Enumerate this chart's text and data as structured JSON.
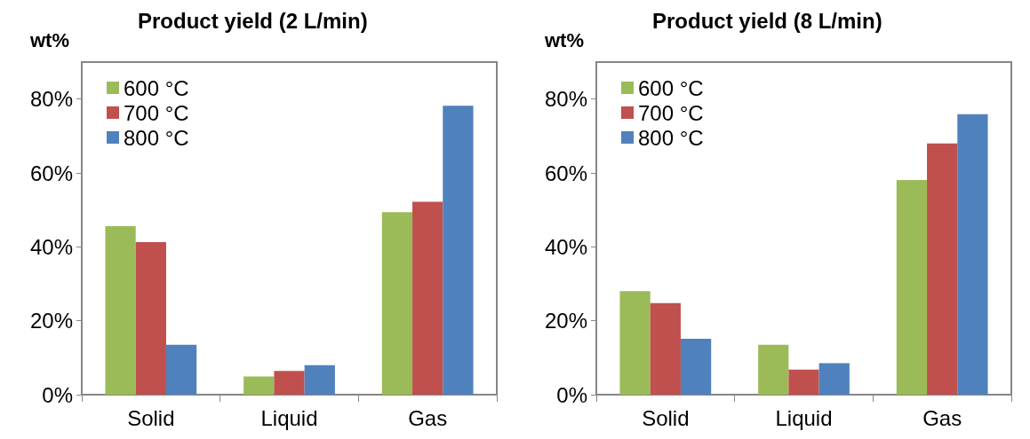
{
  "chart_data": [
    {
      "type": "bar",
      "title": "Product yield (2 L/min)",
      "ylabel": "wt%",
      "categories": [
        "Solid",
        "Liquid",
        "Gas"
      ],
      "series": [
        {
          "name": "600 °C",
          "color": "#9bbb59",
          "values": [
            45.6,
            4.9,
            49.4
          ]
        },
        {
          "name": "700 °C",
          "color": "#c0504d",
          "values": [
            41.3,
            6.4,
            52.2
          ]
        },
        {
          "name": "800 °C",
          "color": "#4f81bd",
          "values": [
            13.5,
            8.0,
            78.2
          ]
        }
      ],
      "ylim": [
        0,
        90
      ],
      "yticks": [
        {
          "value": 0,
          "label": "0%"
        },
        {
          "value": 20,
          "label": "20%"
        },
        {
          "value": 40,
          "label": "40%"
        },
        {
          "value": 60,
          "label": "60%"
        },
        {
          "value": 80,
          "label": "80%"
        }
      ],
      "grid": false,
      "legend": "top left"
    },
    {
      "type": "bar",
      "title": "Product yield (8 L/min)",
      "ylabel": "wt%",
      "categories": [
        "Solid",
        "Liquid",
        "Gas"
      ],
      "series": [
        {
          "name": "600 °C",
          "color": "#9bbb59",
          "values": [
            28.0,
            13.5,
            58.1
          ]
        },
        {
          "name": "700 °C",
          "color": "#c0504d",
          "values": [
            24.8,
            6.8,
            68.0
          ]
        },
        {
          "name": "800 °C",
          "color": "#4f81bd",
          "values": [
            15.1,
            8.5,
            75.9
          ]
        }
      ],
      "ylim": [
        0,
        90
      ],
      "yticks": [
        {
          "value": 0,
          "label": "0%"
        },
        {
          "value": 20,
          "label": "20%"
        },
        {
          "value": 40,
          "label": "40%"
        },
        {
          "value": 60,
          "label": "60%"
        },
        {
          "value": 80,
          "label": "80%"
        }
      ],
      "grid": false,
      "legend": "top left"
    }
  ]
}
